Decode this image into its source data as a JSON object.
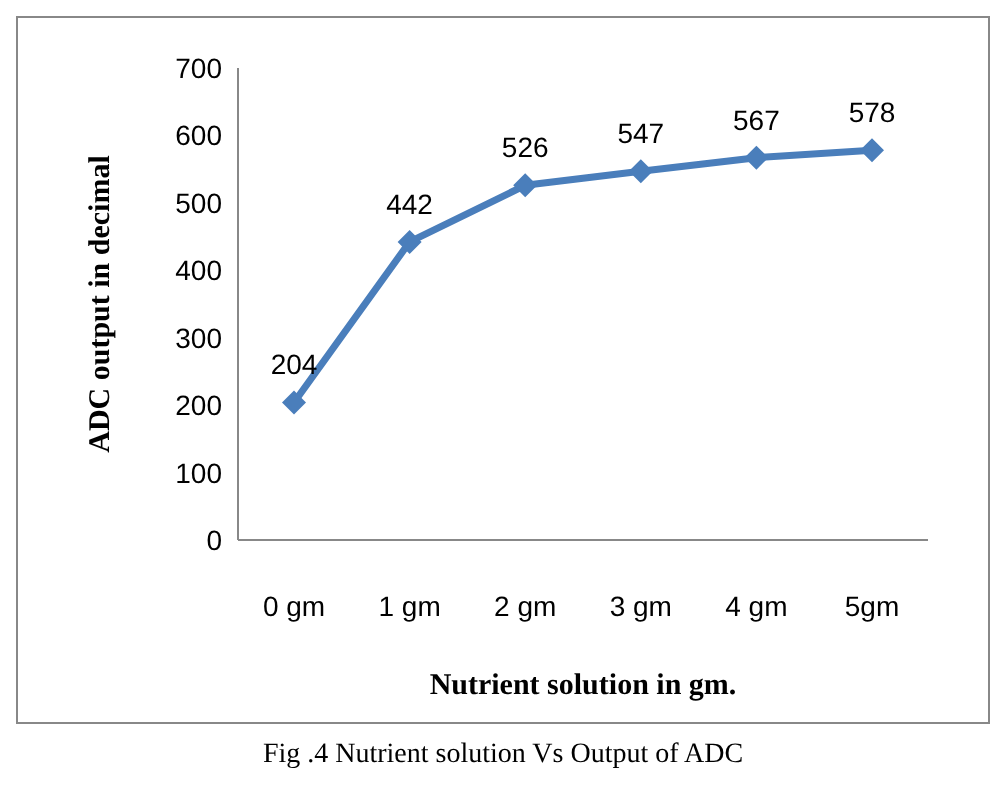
{
  "chart_data": {
    "type": "line",
    "xlabel": "Nutrient solution in gm.",
    "ylabel": "ADC output in decimal",
    "categories": [
      "0 gm",
      "1 gm",
      "2 gm",
      "3 gm",
      "4 gm",
      "5gm"
    ],
    "series": [
      {
        "color": "#4a7ebb",
        "values": [
          204,
          442,
          526,
          547,
          567,
          578
        ]
      }
    ],
    "ylim": [
      0,
      700
    ],
    "yticks": [
      0,
      100,
      200,
      300,
      400,
      500,
      600,
      700
    ],
    "grid": false,
    "legend": false,
    "marker": "diamond",
    "line_style": "solid",
    "data_labels": true,
    "annotations": [
      "Fig .4 Nutrient solution Vs Output of ADC"
    ]
  }
}
